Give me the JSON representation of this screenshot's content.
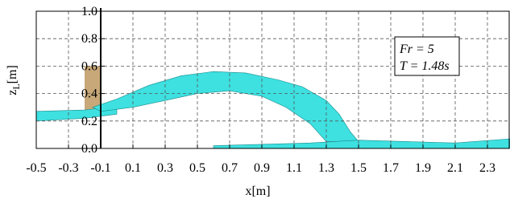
{
  "chart_data": {
    "type": "image",
    "xlabel": "x[m]",
    "ylabel": {
      "main": "z",
      "sub": "L",
      "unit": "[m]"
    },
    "xlim": [
      -0.5,
      2.44
    ],
    "ylim": [
      0,
      1
    ],
    "xticks": [
      -0.5,
      -0.3,
      -0.1,
      0.1,
      0.3,
      0.5,
      0.7,
      0.9,
      1.1,
      1.3,
      1.5,
      1.7,
      1.9,
      2.1,
      2.3
    ],
    "yticks": [
      {
        "value": 0,
        "label": "0.0"
      },
      0.2,
      0.4,
      0.6,
      0.8,
      {
        "value": 1,
        "label": "1.0"
      }
    ],
    "grid": true,
    "annotations": [
      "Fr = 5",
      "T = 1.48s"
    ]
  }
}
